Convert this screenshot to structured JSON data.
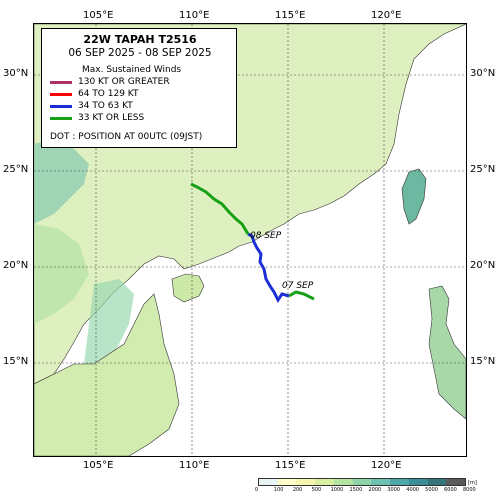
{
  "header": {
    "title": "22W  TAPAH  T2516",
    "dates": "06 SEP 2025 - 08 SEP 2025"
  },
  "legend": {
    "subtitle": "Max. Sustained Winds",
    "items": [
      {
        "label": "130 KT OR GREATER",
        "color": "#b0306a"
      },
      {
        "label": "64 TO 129 KT",
        "color": "#ff0000"
      },
      {
        "label": "34 TO 63 KT",
        "color": "#1a2fd6"
      },
      {
        "label": "33 KT OR LESS",
        "color": "#16a016"
      }
    ],
    "dot_note": "DOT : POSITION AT 00UTC (09JST)"
  },
  "axes": {
    "top_ticks": [
      "105°E",
      "110°E",
      "115°E",
      "120°E"
    ],
    "bottom_ticks": [
      "105°E",
      "110°E",
      "115°E",
      "120°E"
    ],
    "left_ticks": [
      "30°N",
      "25°N",
      "20°N",
      "15°N"
    ],
    "right_ticks": [
      "30°N",
      "25°N",
      "20°N",
      "15°N"
    ]
  },
  "track_labels": {
    "sep08": "08 SEP",
    "sep07": "07 SEP"
  },
  "colorbar": {
    "labels": [
      "0",
      "100",
      "200",
      "500",
      "1000",
      "1500",
      "2000",
      "3000",
      "4000",
      "5000",
      "6000",
      "8000"
    ],
    "unit": "[m]",
    "colors": [
      "#e8f5f5",
      "#fffdc8",
      "#f5f7b0",
      "#d9f0a0",
      "#b5e3a0",
      "#8fd3a8",
      "#6cc1b0",
      "#4da8a8",
      "#3a8e9a",
      "#35747a",
      "#5a5a5a"
    ]
  }
}
